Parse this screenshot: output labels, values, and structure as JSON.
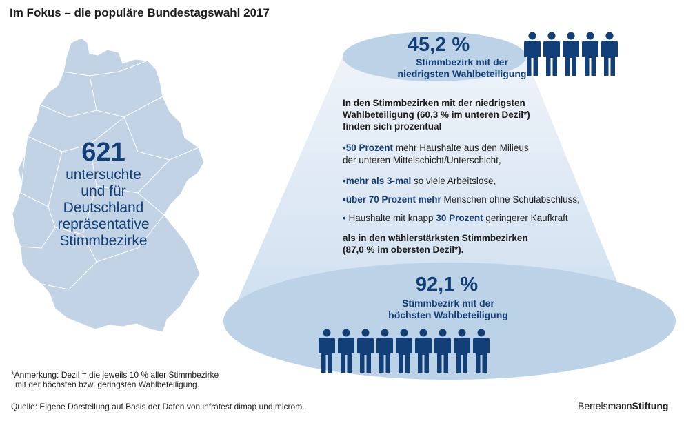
{
  "title": "Im Fokus – die populäre Bundestagswahl 2017",
  "map": {
    "number": "621",
    "lines": [
      "untersuchte",
      "und für",
      "Deutschland",
      "repräsentative",
      "Stimmbezirke"
    ]
  },
  "top": {
    "percent": "45,2 %",
    "label_line1": "Stimmbezirk mit der",
    "label_line2": "niedrigsten Wahlbeteiligung",
    "people_count": 5
  },
  "intro": {
    "line1": "In den Stimmbezirken mit der niedrigsten",
    "line2": "Wahlbeteiligung (60,3 % im unteren Dezil*)",
    "line3": "finden sich prozentual"
  },
  "bullets": [
    {
      "bullet": "•",
      "pre": "",
      "highlight": "50 Prozent",
      "post": " mehr Haushalte  aus den Milieus",
      "line2": "der unteren Mittelschicht/Unterschicht,"
    },
    {
      "bullet": "•",
      "pre": "",
      "highlight": "mehr als 3-mal",
      "post": " so viele  Arbeitslose,"
    },
    {
      "bullet": "•",
      "pre": "",
      "highlight": "über 70 Prozent mehr",
      "post": " Menschen ohne Schulabschluss,"
    },
    {
      "bullet": "•",
      "pre": " Haushalte mit knapp ",
      "highlight": "30 Prozent",
      "post": " geringerer Kaufkraft"
    }
  ],
  "outro": {
    "line1": "als in den wählerstärksten Stimmbezirken",
    "line2": "(87,0 % im obersten Dezil*)."
  },
  "bottom": {
    "percent": "92,1 %",
    "label_line1": "Stimmbezirk mit der",
    "label_line2": "höchsten Wahlbeteiligung",
    "people_count": 9
  },
  "note": {
    "line1": "*Anmerkung: Dezil = die jeweils 10 % aller Stimmbezirke",
    "line2": "mit der höchsten bzw. geringsten Wahlbeteiligung."
  },
  "source": "Quelle: Eigene Darstellung auf Basis der Daten von infratest dimap und microm.",
  "brand": {
    "part1": "Bertelsmann",
    "part2": "Stiftung"
  },
  "colors": {
    "dark_blue": "#123f77",
    "map_fill": "#c2d3e6",
    "ellipse_fill": "#bcd2e7",
    "cone_light": "#e4edf6"
  }
}
